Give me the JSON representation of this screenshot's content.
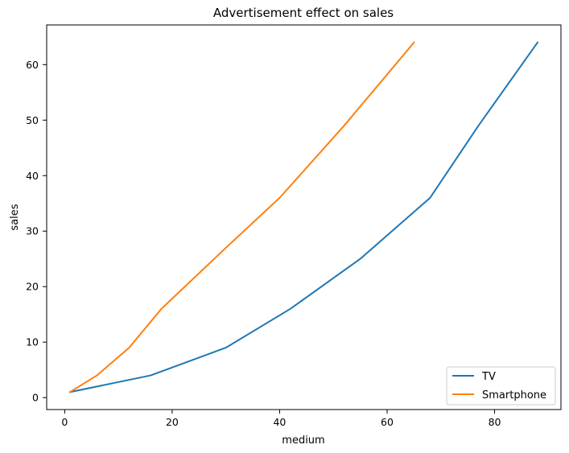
{
  "chart_data": {
    "type": "line",
    "title": "Advertisement effect on sales",
    "xlabel": "medium",
    "ylabel": "sales",
    "xlim": [
      -3.35,
      92.35
    ],
    "ylim": [
      -2.15,
      67.15
    ],
    "xticks": [
      0,
      20,
      40,
      60,
      80
    ],
    "yticks": [
      0,
      10,
      20,
      30,
      40,
      50,
      60
    ],
    "grid": false,
    "legend_position": "bottom-right",
    "series": [
      {
        "name": "TV",
        "color": "#1f77b4",
        "x": [
          1,
          16,
          30,
          42,
          55,
          68,
          77,
          88
        ],
        "y": [
          1,
          4,
          9,
          16,
          25,
          36,
          49,
          64
        ]
      },
      {
        "name": "Smartphone",
        "color": "#ff7f0e",
        "x": [
          1,
          6,
          12,
          18,
          30,
          40,
          52,
          65
        ],
        "y": [
          1,
          4,
          9,
          16,
          27,
          36,
          49,
          64
        ]
      }
    ]
  }
}
